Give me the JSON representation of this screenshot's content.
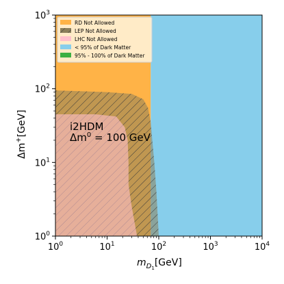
{
  "chart_data": {
    "type": "area",
    "x_axis": {
      "label_main": "m",
      "label_sub": "D",
      "label_subsub": "1",
      "label_unit": "[GeV]",
      "scale": "log",
      "range": [
        1,
        10000
      ],
      "ticks": [
        {
          "base": "10",
          "exp": "0",
          "value": 1
        },
        {
          "base": "10",
          "exp": "1",
          "value": 10
        },
        {
          "base": "10",
          "exp": "2",
          "value": 100
        },
        {
          "base": "10",
          "exp": "3",
          "value": 1000
        },
        {
          "base": "10",
          "exp": "4",
          "value": 10000
        }
      ]
    },
    "y_axis": {
      "label_main": "Δm",
      "label_sup": "+",
      "label_unit": "[GeV]",
      "scale": "log",
      "range": [
        1,
        1000
      ],
      "ticks": [
        {
          "base": "10",
          "exp": "0",
          "value": 1
        },
        {
          "base": "10",
          "exp": "1",
          "value": 10
        },
        {
          "base": "10",
          "exp": "2",
          "value": 100
        },
        {
          "base": "10",
          "exp": "3",
          "value": 1000
        }
      ]
    },
    "legend": {
      "placement": "top-left",
      "entries": [
        {
          "label": "RD Not Allowed",
          "color": "#FFB347",
          "hatch": false
        },
        {
          "label": "LEP Not Allowed",
          "color": "#8C7F5A",
          "hatch": true
        },
        {
          "label": "LHC Not Allowed",
          "color": "#FFC0CB",
          "hatch": false
        },
        {
          "label": "< 95% of Dark Matter",
          "color": "#87CEEB",
          "hatch": false
        },
        {
          "label": "95% - 100% of Dark Matter",
          "color": "#3CB043",
          "hatch": false
        }
      ]
    },
    "annotation": {
      "line1": "i2HDM",
      "line2_main": "Δm",
      "line2_sup": "0",
      "line2_rest": " = 100 GeV"
    },
    "regions": {
      "rd_not_allowed": {
        "color": "#FFB347",
        "x_range": [
          1,
          70
        ],
        "y_range": [
          1,
          1000
        ]
      },
      "dm_below_95": {
        "color": "#87CEEB",
        "x_range": [
          70,
          10000
        ],
        "y_range": [
          1,
          1000
        ]
      },
      "lep_not_allowed": {
        "color": "#8C7F5A",
        "boundary": [
          [
            1,
            95
          ],
          [
            10,
            90
          ],
          [
            30,
            85
          ],
          [
            50,
            72
          ],
          [
            62,
            55
          ],
          [
            70,
            35
          ],
          [
            75,
            20
          ],
          [
            82,
            10
          ],
          [
            90,
            4
          ],
          [
            100,
            1
          ]
        ]
      },
      "lhc_not_allowed": {
        "color": "#FFC0CB",
        "boundary": [
          [
            1,
            45
          ],
          [
            6,
            45
          ],
          [
            15,
            42
          ],
          [
            22,
            30
          ],
          [
            25,
            20
          ],
          [
            26,
            10
          ],
          [
            26,
            5
          ],
          [
            30,
            2.5
          ],
          [
            38,
            1
          ]
        ]
      }
    }
  }
}
